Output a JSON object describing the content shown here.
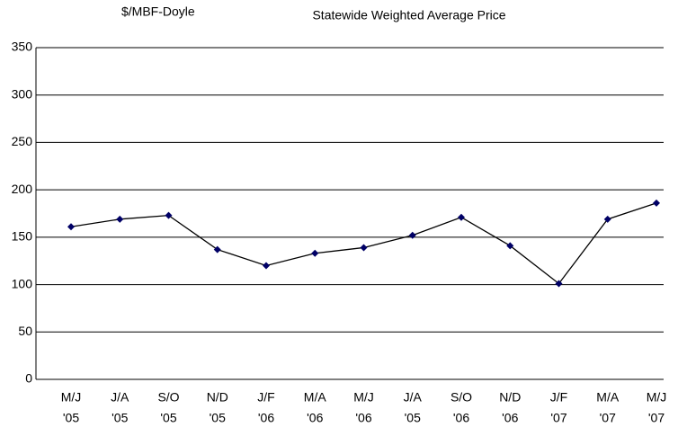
{
  "chart_data": {
    "type": "line",
    "title": "Statewide Weighted Average Price",
    "ylabel": "$/MBF-Doyle",
    "categories": [
      [
        "M/J",
        "'05"
      ],
      [
        "J/A",
        "'05"
      ],
      [
        "S/O",
        "'05"
      ],
      [
        "N/D",
        "'05"
      ],
      [
        "J/F",
        "'06"
      ],
      [
        "M/A",
        "'06"
      ],
      [
        "M/J",
        "'06"
      ],
      [
        "J/A",
        "'05"
      ],
      [
        "S/O",
        "'06"
      ],
      [
        "N/D",
        "'06"
      ],
      [
        "J/F",
        "'07"
      ],
      [
        "M/A",
        "'07"
      ],
      [
        "M/J",
        "'07"
      ]
    ],
    "values": [
      161,
      169,
      173,
      137,
      120,
      133,
      139,
      152,
      171,
      141,
      101,
      169,
      186
    ],
    "color": "#000066",
    "ylim": [
      0,
      350
    ],
    "yticks": [
      0,
      50,
      100,
      150,
      200,
      250,
      300,
      350
    ],
    "grid": true
  }
}
